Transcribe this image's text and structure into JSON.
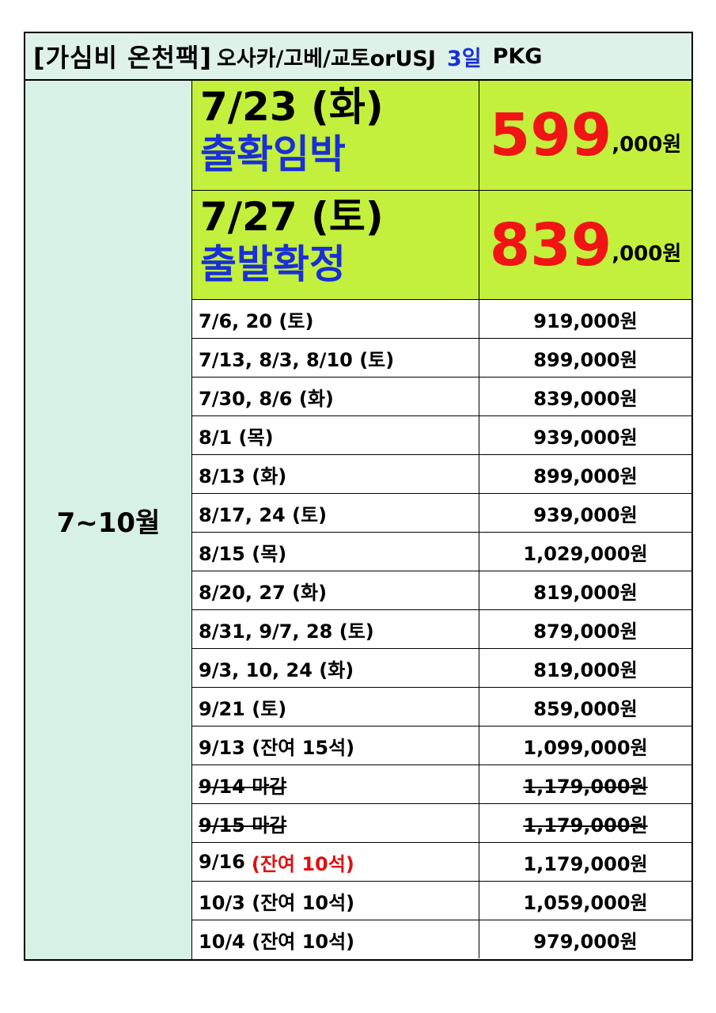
{
  "title": {
    "main": "[가심비 온천팩]",
    "route": "오사카/고베/교토orUSJ",
    "days": "3일",
    "pkg": "PKG"
  },
  "month_label": "7~10월",
  "highlights": [
    {
      "date": "7/23 (화)",
      "status": "출확임박",
      "price_big": "599",
      "price_rest": ",000원"
    },
    {
      "date": "7/27 (토)",
      "status": "출발확정",
      "price_big": "839",
      "price_rest": ",000원"
    }
  ],
  "rows": [
    {
      "date": "7/6, 20 (토)",
      "price": "919,000원"
    },
    {
      "date": "7/13, 8/3, 8/10 (토)",
      "price": "899,000원"
    },
    {
      "date": "7/30, 8/6 (화)",
      "price": "839,000원"
    },
    {
      "date": "8/1 (목)",
      "price": "939,000원"
    },
    {
      "date": "8/13 (화)",
      "price": "899,000원"
    },
    {
      "date": "8/17, 24 (토)",
      "price": "939,000원"
    },
    {
      "date": "8/15 (목)",
      "price": "1,029,000원"
    },
    {
      "date": "8/20, 27 (화)",
      "price": "819,000원"
    },
    {
      "date": "8/31, 9/7, 28  (토)",
      "price": "879,000원"
    },
    {
      "date": "9/3, 10, 24 (화)",
      "price": "819,000원"
    },
    {
      "date": "9/21 (토)",
      "price": "859,000원"
    },
    {
      "date": "9/13 (잔여 15석)",
      "price": "1,099,000원"
    },
    {
      "date": "9/14 마감",
      "price": "1,179,000원",
      "closed": true
    },
    {
      "date": "9/15 마감",
      "price": "1,179,000원",
      "closed": true
    },
    {
      "date": "9/16",
      "note": "(잔여 10석)",
      "note_color": "#e01010",
      "price": "1,179,000원"
    },
    {
      "date": "10/3 (잔여 10석)",
      "price": "1,059,000원"
    },
    {
      "date": "10/4 (잔여 10석)",
      "price": "979,000원"
    }
  ]
}
